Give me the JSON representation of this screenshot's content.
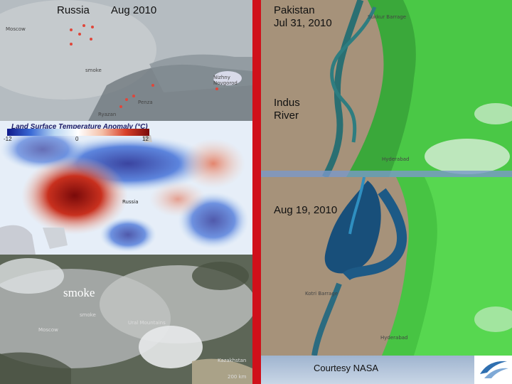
{
  "left": {
    "russia_panel": {
      "label_region": "Russia",
      "label_date": "Aug 2010",
      "places": [
        "Moscow",
        "smoke",
        "Ryazan",
        "Penza",
        "Nizhny Novgorod"
      ]
    },
    "anomaly_panel": {
      "legend_title": "Land Surface Temperature Anomaly (°C)",
      "legend_min": "-12",
      "legend_mid": "0",
      "legend_max": "12",
      "place": "Russia",
      "colors": {
        "cold": "#101a8a",
        "neutral": "#ffffff",
        "hot": "#7a0a0a"
      }
    },
    "smoke_panel": {
      "label": "smoke",
      "places": [
        "Moscow",
        "smoke",
        "Ural Mountains",
        "Kazakhstan"
      ],
      "scale": "200 km"
    }
  },
  "right": {
    "top_panel": {
      "label_place": "Pakistan\nJul 31, 2010",
      "label_river": "Indus\nRiver",
      "places": [
        "Sukkur Barrage",
        "Hyderabad"
      ]
    },
    "bottom_panel": {
      "label_date": "Aug 19, 2010",
      "places": [
        "Kotri Barrage",
        "Hyderabad"
      ]
    }
  },
  "credit": "Courtesy NASA",
  "divider_color": "#d0101a",
  "icons": {
    "logo": "swoosh-logo-icon"
  }
}
